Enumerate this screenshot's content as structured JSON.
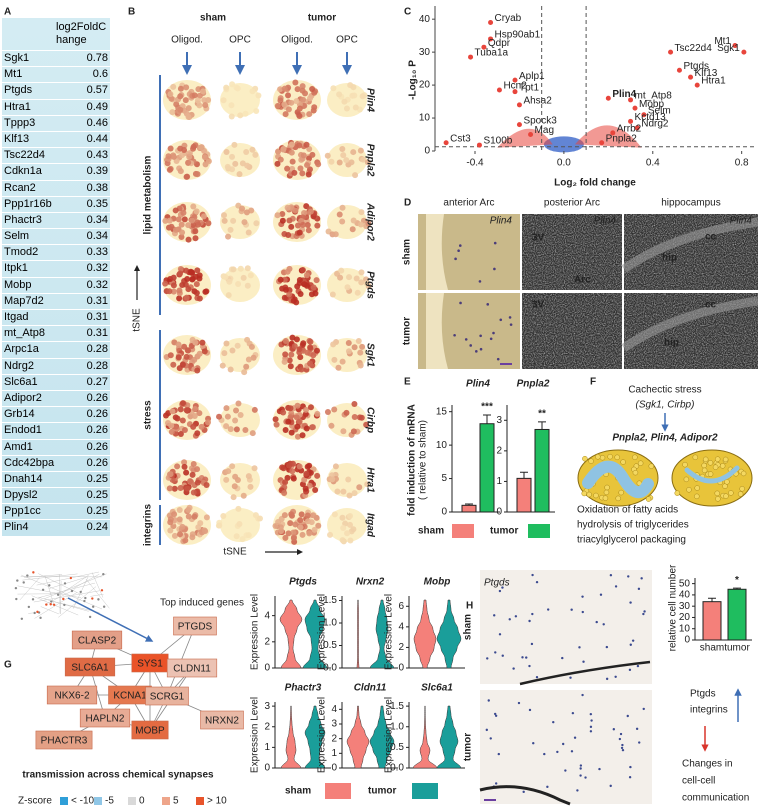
{
  "panel_letters": [
    "A",
    "B",
    "C",
    "D",
    "E",
    "F",
    "G",
    "H"
  ],
  "table": {
    "header": "log2FoldChange",
    "rows": [
      [
        "Sgk1",
        0.78
      ],
      [
        "Mt1",
        0.6
      ],
      [
        "Ptgds",
        0.57
      ],
      [
        "Htra1",
        0.49
      ],
      [
        "Tppp3",
        0.46
      ],
      [
        "Klf13",
        0.44
      ],
      [
        "Tsc22d4",
        0.43
      ],
      [
        "Cdkn1a",
        0.39
      ],
      [
        "Rcan2",
        0.38
      ],
      [
        "Ppp1r16b",
        0.35
      ],
      [
        "Phactr3",
        0.34
      ],
      [
        "Selm",
        0.34
      ],
      [
        "Tmod2",
        0.33
      ],
      [
        "Itpk1",
        0.32
      ],
      [
        "Mobp",
        0.32
      ],
      [
        "Map7d2",
        0.31
      ],
      [
        "Itgad",
        0.31
      ],
      [
        "mt_Atp8",
        0.31
      ],
      [
        "Arpc1a",
        0.28
      ],
      [
        "Ndrg2",
        0.28
      ],
      [
        "Slc6a1",
        0.27
      ],
      [
        "Adipor2",
        0.26
      ],
      [
        "Grb14",
        0.26
      ],
      [
        "Endod1",
        0.26
      ],
      [
        "Amd1",
        0.26
      ],
      [
        "Cdc42bpa",
        0.26
      ],
      [
        "Dnah14",
        0.25
      ],
      [
        "Dpysl2",
        0.25
      ],
      [
        "Ppp1cc",
        0.25
      ],
      [
        "Plin4",
        0.24
      ]
    ]
  },
  "tsne": {
    "conditions": [
      "sham",
      "tumor"
    ],
    "cell_types": [
      "Oligod.",
      "OPC"
    ],
    "cell_type_colors": [
      "#e2302a",
      "#27a9e1"
    ],
    "genes": [
      "Plin4",
      "Pnpla2",
      "Adipor2",
      "Ptgds",
      "Sgk1",
      "Cirbp",
      "Htra1",
      "Itgad"
    ],
    "groups": [
      "lipid metabolism",
      "stress",
      "integrins"
    ],
    "axis_label": "tSNE"
  },
  "volcano": {
    "type": "scatter",
    "x_label": "Log₂ fold change",
    "y_label": "-Log₁₀ P",
    "xlim": [
      -0.58,
      0.86
    ],
    "xticks": [
      -0.4,
      {
        "value": 0,
        "label": "0.0"
      },
      0.4,
      0.8
    ],
    "ylim": [
      0,
      44
    ],
    "yticks": [
      0,
      10,
      20,
      30,
      40
    ],
    "thresholds_x": [
      -0.1,
      0.1
    ],
    "threshold_y": 1.3,
    "color": "#e8453c",
    "points": [
      {
        "label": "Cryab",
        "x": -0.33,
        "y": 39
      },
      {
        "label": "Hsp90ab1",
        "x": -0.33,
        "y": 34
      },
      {
        "label": "Qdpr",
        "x": -0.36,
        "y": 31.5
      },
      {
        "label": "Tuba1a",
        "x": -0.42,
        "y": 28.5
      },
      {
        "label": "Mt1",
        "x": 0.77,
        "y": 32
      },
      {
        "label": "Sgk1",
        "x": 0.81,
        "y": 30
      },
      {
        "label": "Tsc22d4",
        "x": 0.48,
        "y": 30
      },
      {
        "label": "Ptgds",
        "x": 0.52,
        "y": 24.5
      },
      {
        "label": "Klf13",
        "x": 0.57,
        "y": 22.4
      },
      {
        "label": "Htra1",
        "x": 0.6,
        "y": 20
      },
      {
        "label": "Hcn2",
        "x": -0.29,
        "y": 18.5
      },
      {
        "label": "Aplp1",
        "x": -0.22,
        "y": 21.5
      },
      {
        "label": "Tpt1",
        "x": -0.22,
        "y": 18
      },
      {
        "label": "Ahsa2",
        "x": -0.2,
        "y": 14
      },
      {
        "label": "Spock3",
        "x": -0.2,
        "y": 8
      },
      {
        "label": "Plin4",
        "x": 0.2,
        "y": 16
      },
      {
        "label": "mt_Atp8",
        "x": 0.3,
        "y": 15.5
      },
      {
        "label": "Mobp",
        "x": 0.32,
        "y": 13
      },
      {
        "label": "Selm",
        "x": 0.36,
        "y": 11
      },
      {
        "label": "Kctd13",
        "x": 0.3,
        "y": 9
      },
      {
        "label": "Ndrg2",
        "x": 0.33,
        "y": 7
      },
      {
        "label": "Arrb2",
        "x": 0.22,
        "y": 5.5
      },
      {
        "label": "Mag",
        "x": -0.15,
        "y": 5
      },
      {
        "label": "Pnpla2",
        "x": 0.17,
        "y": 2.5
      },
      {
        "label": "Cst3",
        "x": -0.53,
        "y": 2.5
      },
      {
        "label": "S100b",
        "x": -0.38,
        "y": 1.8
      }
    ]
  },
  "ish": {
    "regions": [
      "anterior Arc",
      "posterior Arc",
      "hippocampus"
    ],
    "rows": [
      "sham",
      "tumor"
    ],
    "probe": "Plin4",
    "marks": [
      "3V",
      "Arc",
      "hip",
      "cc"
    ]
  },
  "qpcr": {
    "y_label": "fold induction of mRNA",
    "y_sublabel": "( relative to sham)",
    "legend": [
      {
        "name": "sham",
        "color": "#f4807a"
      },
      {
        "name": "tumor",
        "color": "#1fbd5f"
      }
    ],
    "charts": [
      {
        "title": "Plin4",
        "values": [
          1,
          13.2
        ],
        "errors": [
          0.2,
          1.3
        ],
        "ylim": [
          0,
          16
        ],
        "yticks": [
          0,
          5,
          10,
          15
        ],
        "significance": "***"
      },
      {
        "title": "Pnpla2",
        "values": [
          1.1,
          2.7
        ],
        "errors": [
          0.2,
          0.25
        ],
        "ylim": [
          0,
          3.5
        ],
        "yticks": [
          0,
          1,
          2,
          3
        ],
        "significance": "**"
      }
    ]
  },
  "model": {
    "stress": "Cachectic stress",
    "stress_genes": "(Sgk1, Cirbp)",
    "genes": "Pnpla2, Plin4, Adipor2",
    "functions": [
      "Oxidation of fatty acids",
      "hydrolysis of triglycerides",
      "triacylglycerol packaging"
    ]
  },
  "network": {
    "caption": "Top induced genes",
    "pathway": "transmission across chemical synapses",
    "nodes": [
      {
        "label": "CLASP2",
        "color": "#e39f88"
      },
      {
        "label": "PTGDS",
        "color": "#ebbba8"
      },
      {
        "label": "SLC6A1",
        "color": "#e06b45"
      },
      {
        "label": "SYS1",
        "color": "#ea5328"
      },
      {
        "label": "CLDN11",
        "color": "#ecc2b3"
      },
      {
        "label": "NKX6-2",
        "color": "#e6a48b"
      },
      {
        "label": "KCNA1",
        "color": "#e5784f"
      },
      {
        "label": "SCRG1",
        "color": "#e8b39e"
      },
      {
        "label": "NRXN2",
        "color": "#e9b9a6"
      },
      {
        "label": "HAPLN2",
        "color": "#e8ab95"
      },
      {
        "label": "MOBP",
        "color": "#e36b42"
      },
      {
        "label": "PHACTR3",
        "color": "#e3a085"
      }
    ],
    "zscore_title": "Z-score",
    "zscore": [
      {
        "label": "< -10",
        "color": "#2f9fd8"
      },
      {
        "label": "-5",
        "color": "#8fc6e6"
      },
      {
        "label": "0",
        "color": "#d9d9d9"
      },
      {
        "label": "5",
        "color": "#eea58a"
      },
      {
        "label": "> 10",
        "color": "#e8542b"
      }
    ]
  },
  "violins": {
    "y_label": "Expression Level",
    "legend": [
      {
        "name": "sham",
        "color": "#f4807a"
      },
      {
        "name": "tumor",
        "color": "#1a9e9a"
      }
    ],
    "genes": [
      {
        "gene": "Ptgds",
        "ylim": [
          0,
          5.5
        ],
        "yticks": [
          0,
          2,
          4
        ]
      },
      {
        "gene": "Nrxn2",
        "ylim": [
          0,
          1.6
        ],
        "yticks": [
          {
            "value": 0,
            "label": "0.0"
          },
          0.5,
          {
            "value": 1,
            "label": "1.0"
          },
          1.5
        ]
      },
      {
        "gene": "Mobp",
        "ylim": [
          0,
          7
        ],
        "yticks": [
          0,
          2,
          4,
          6
        ]
      },
      {
        "gene": "Phactr3",
        "ylim": [
          0,
          3.2
        ],
        "yticks": [
          0,
          1,
          2,
          3
        ]
      },
      {
        "gene": "Cldn11",
        "ylim": [
          0,
          4.5
        ],
        "yticks": [
          0,
          1,
          2,
          3,
          4
        ]
      },
      {
        "gene": "Slc6a1",
        "ylim": [
          0,
          1.6
        ],
        "yticks": [
          {
            "value": 0,
            "label": "0.0"
          },
          0.5,
          {
            "value": 1,
            "label": "1.0"
          },
          1.5
        ]
      }
    ]
  },
  "ptgds": {
    "probe": "Ptgds",
    "rows": [
      "sham",
      "tumor"
    ],
    "chart": {
      "categories": [
        "sham",
        "tumor"
      ],
      "colors": [
        "#f4807a",
        "#1fbd5f"
      ],
      "values": [
        34,
        45
      ],
      "errors": [
        3,
        1
      ],
      "ylim": [
        0,
        55
      ],
      "yticks": [
        0,
        10,
        20,
        30,
        40,
        50
      ],
      "y_label": "relative cell number",
      "significance": "*"
    },
    "notes": [
      "Ptgds",
      "integrins"
    ],
    "outcome": [
      "Changes in",
      "cell-cell",
      "communication"
    ]
  }
}
